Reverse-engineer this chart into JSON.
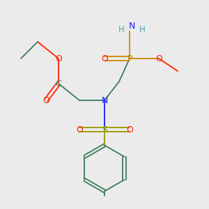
{
  "background_color": "#ebebeb",
  "colors": {
    "C": "#3d7a5a",
    "N": "#1a1aff",
    "O": "#ff2200",
    "P": "#cc8800",
    "S": "#999900",
    "H": "#44aaaa",
    "bond": "#3d7a5a"
  },
  "figsize": [
    3.0,
    3.0
  ],
  "dpi": 100,
  "xlim": [
    0,
    1
  ],
  "ylim": [
    0,
    1
  ]
}
